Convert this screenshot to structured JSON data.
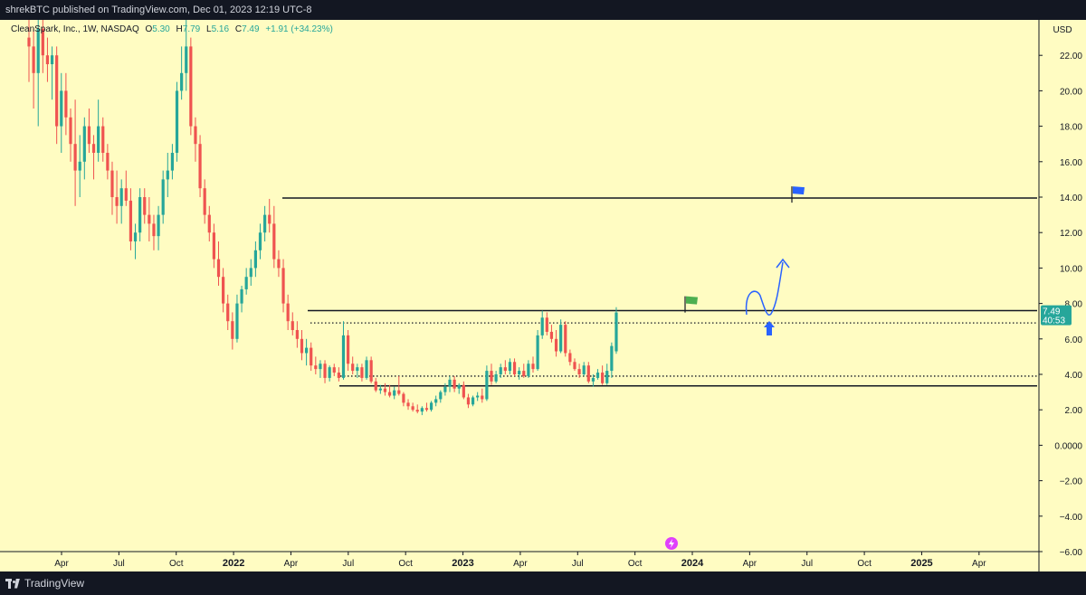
{
  "header": {
    "publisher_line": "shrekBTC published on TradingView.com, Dec 01, 2023 12:19 UTC-8"
  },
  "footer": {
    "brand": "TradingView"
  },
  "legend": {
    "symbol": "CleanSpark, Inc., 1W, NASDAQ",
    "o_label": "O",
    "o_value": "5.30",
    "h_label": "H",
    "h_value": "7.79",
    "l_label": "L",
    "l_value": "5.16",
    "c_label": "C",
    "c_value": "7.49",
    "change": "+1.91 (+34.23%)"
  },
  "price_axis": {
    "currency": "USD",
    "last_price": "7.49",
    "countdown": "40:53"
  },
  "colors": {
    "background": "#fffcc2",
    "up": "#26a69a",
    "down": "#ef5350",
    "line": "#131722",
    "drawing": "#2962ff",
    "flag_green": "#4caf50",
    "flag_blue": "#2962ff"
  },
  "chart_data": {
    "type": "candlestick",
    "interval": "1W",
    "yticks": [
      "22.00",
      "20.00",
      "18.00",
      "16.00",
      "14.00",
      "12.00",
      "10.00",
      "8.00",
      "6.00",
      "4.00",
      "2.00",
      "0.0000",
      "−2.00",
      "−4.00",
      "−6.00"
    ],
    "xticks": [
      "Apr",
      "Jul",
      "Oct",
      "2022",
      "Apr",
      "Jul",
      "Oct",
      "2023",
      "Apr",
      "Jul",
      "Oct",
      "2024",
      "Apr",
      "Jul",
      "Oct",
      "2025",
      "Apr"
    ],
    "ylim": [
      -6.0,
      24.0
    ],
    "horizontal_lines": [
      {
        "price": 13.95,
        "style": "solid"
      },
      {
        "price": 7.6,
        "style": "solid"
      },
      {
        "price": 6.9,
        "style": "dotted"
      },
      {
        "price": 3.9,
        "style": "dotted"
      },
      {
        "price": 3.35,
        "style": "solid"
      }
    ],
    "candles": [
      {
        "o": 23.0,
        "h": 24.5,
        "l": 20.5,
        "c": 22.5
      },
      {
        "o": 22.5,
        "h": 23.5,
        "l": 19.0,
        "c": 21.0
      },
      {
        "o": 21.0,
        "h": 24.0,
        "l": 18.0,
        "c": 23.5
      },
      {
        "o": 23.5,
        "h": 24.0,
        "l": 21.0,
        "c": 22.0
      },
      {
        "o": 22.0,
        "h": 23.0,
        "l": 20.5,
        "c": 21.5
      },
      {
        "o": 21.5,
        "h": 22.5,
        "l": 19.5,
        "c": 22.0
      },
      {
        "o": 22.0,
        "h": 22.5,
        "l": 17.0,
        "c": 18.0
      },
      {
        "o": 18.0,
        "h": 21.0,
        "l": 16.5,
        "c": 20.0
      },
      {
        "o": 20.0,
        "h": 21.0,
        "l": 17.5,
        "c": 18.5
      },
      {
        "o": 18.5,
        "h": 19.0,
        "l": 16.0,
        "c": 17.0
      },
      {
        "o": 17.0,
        "h": 19.5,
        "l": 13.5,
        "c": 15.5
      },
      {
        "o": 15.5,
        "h": 17.5,
        "l": 14.0,
        "c": 16.0
      },
      {
        "o": 16.0,
        "h": 18.5,
        "l": 15.0,
        "c": 18.0
      },
      {
        "o": 18.0,
        "h": 19.0,
        "l": 16.5,
        "c": 17.0
      },
      {
        "o": 17.0,
        "h": 17.5,
        "l": 15.0,
        "c": 16.5
      },
      {
        "o": 16.5,
        "h": 19.5,
        "l": 16.0,
        "c": 18.0
      },
      {
        "o": 18.0,
        "h": 18.5,
        "l": 16.0,
        "c": 16.5
      },
      {
        "o": 16.5,
        "h": 17.0,
        "l": 15.0,
        "c": 15.5
      },
      {
        "o": 15.5,
        "h": 16.0,
        "l": 13.0,
        "c": 14.0
      },
      {
        "o": 14.0,
        "h": 15.5,
        "l": 12.5,
        "c": 13.5
      },
      {
        "o": 13.5,
        "h": 15.0,
        "l": 12.5,
        "c": 14.5
      },
      {
        "o": 14.5,
        "h": 15.5,
        "l": 13.5,
        "c": 13.8
      },
      {
        "o": 13.8,
        "h": 14.5,
        "l": 11.0,
        "c": 11.5
      },
      {
        "o": 11.5,
        "h": 12.5,
        "l": 10.5,
        "c": 12.0
      },
      {
        "o": 12.0,
        "h": 14.5,
        "l": 11.5,
        "c": 14.0
      },
      {
        "o": 14.0,
        "h": 14.5,
        "l": 12.5,
        "c": 13.0
      },
      {
        "o": 13.0,
        "h": 14.0,
        "l": 11.5,
        "c": 12.5
      },
      {
        "o": 12.5,
        "h": 13.0,
        "l": 11.0,
        "c": 11.8
      },
      {
        "o": 11.8,
        "h": 13.5,
        "l": 11.0,
        "c": 13.0
      },
      {
        "o": 13.0,
        "h": 15.5,
        "l": 12.5,
        "c": 15.0
      },
      {
        "o": 15.0,
        "h": 16.5,
        "l": 14.0,
        "c": 15.5
      },
      {
        "o": 15.5,
        "h": 17.0,
        "l": 15.0,
        "c": 16.5
      },
      {
        "o": 16.5,
        "h": 20.5,
        "l": 16.0,
        "c": 20.0
      },
      {
        "o": 20.0,
        "h": 22.5,
        "l": 19.5,
        "c": 21.0
      },
      {
        "o": 21.0,
        "h": 24.0,
        "l": 20.0,
        "c": 22.5
      },
      {
        "o": 22.5,
        "h": 23.0,
        "l": 17.5,
        "c": 18.0
      },
      {
        "o": 18.0,
        "h": 18.5,
        "l": 16.0,
        "c": 17.0
      },
      {
        "o": 17.0,
        "h": 17.5,
        "l": 14.0,
        "c": 14.5
      },
      {
        "o": 14.5,
        "h": 15.0,
        "l": 12.5,
        "c": 13.0
      },
      {
        "o": 13.0,
        "h": 13.5,
        "l": 11.5,
        "c": 12.0
      },
      {
        "o": 12.0,
        "h": 12.5,
        "l": 10.0,
        "c": 10.5
      },
      {
        "o": 10.5,
        "h": 11.5,
        "l": 9.0,
        "c": 9.5
      },
      {
        "o": 9.5,
        "h": 10.0,
        "l": 7.5,
        "c": 8.0
      },
      {
        "o": 8.0,
        "h": 8.5,
        "l": 6.5,
        "c": 7.0
      },
      {
        "o": 7.0,
        "h": 7.5,
        "l": 5.4,
        "c": 6.0
      },
      {
        "o": 6.0,
        "h": 8.5,
        "l": 5.8,
        "c": 8.0
      },
      {
        "o": 8.0,
        "h": 9.0,
        "l": 7.5,
        "c": 8.8
      },
      {
        "o": 8.8,
        "h": 10.0,
        "l": 8.5,
        "c": 9.5
      },
      {
        "o": 9.5,
        "h": 10.5,
        "l": 9.0,
        "c": 10.0
      },
      {
        "o": 10.0,
        "h": 11.5,
        "l": 9.5,
        "c": 11.0
      },
      {
        "o": 11.0,
        "h": 12.5,
        "l": 10.5,
        "c": 12.0
      },
      {
        "o": 12.0,
        "h": 13.5,
        "l": 11.5,
        "c": 13.0
      },
      {
        "o": 13.0,
        "h": 13.9,
        "l": 12.0,
        "c": 12.5
      },
      {
        "o": 12.5,
        "h": 13.5,
        "l": 10.0,
        "c": 10.5
      },
      {
        "o": 10.5,
        "h": 11.0,
        "l": 9.5,
        "c": 10.0
      },
      {
        "o": 10.0,
        "h": 10.5,
        "l": 7.5,
        "c": 8.0
      },
      {
        "o": 8.0,
        "h": 8.5,
        "l": 6.5,
        "c": 7.0
      },
      {
        "o": 7.0,
        "h": 7.5,
        "l": 6.2,
        "c": 6.5
      },
      {
        "o": 6.5,
        "h": 7.0,
        "l": 5.5,
        "c": 6.0
      },
      {
        "o": 6.0,
        "h": 6.5,
        "l": 4.8,
        "c": 5.2
      },
      {
        "o": 5.2,
        "h": 6.0,
        "l": 4.5,
        "c": 5.5
      },
      {
        "o": 5.5,
        "h": 5.8,
        "l": 4.2,
        "c": 4.5
      },
      {
        "o": 4.5,
        "h": 5.0,
        "l": 4.0,
        "c": 4.3
      },
      {
        "o": 4.3,
        "h": 4.8,
        "l": 3.8,
        "c": 4.6
      },
      {
        "o": 4.6,
        "h": 4.8,
        "l": 3.5,
        "c": 3.8
      },
      {
        "o": 3.8,
        "h": 4.5,
        "l": 3.6,
        "c": 4.4
      },
      {
        "o": 4.4,
        "h": 4.6,
        "l": 3.9,
        "c": 4.1
      },
      {
        "o": 4.1,
        "h": 4.4,
        "l": 3.6,
        "c": 3.8
      },
      {
        "o": 3.8,
        "h": 7.0,
        "l": 3.7,
        "c": 6.2
      },
      {
        "o": 6.2,
        "h": 6.5,
        "l": 4.2,
        "c": 4.6
      },
      {
        "o": 4.6,
        "h": 5.0,
        "l": 4.0,
        "c": 4.2
      },
      {
        "o": 4.2,
        "h": 4.6,
        "l": 3.8,
        "c": 4.4
      },
      {
        "o": 4.4,
        "h": 4.6,
        "l": 3.6,
        "c": 3.8
      },
      {
        "o": 3.8,
        "h": 5.0,
        "l": 3.7,
        "c": 4.8
      },
      {
        "o": 4.8,
        "h": 5.0,
        "l": 3.5,
        "c": 3.6
      },
      {
        "o": 3.6,
        "h": 3.8,
        "l": 3.0,
        "c": 3.1
      },
      {
        "o": 3.1,
        "h": 3.4,
        "l": 2.9,
        "c": 3.2
      },
      {
        "o": 3.2,
        "h": 3.5,
        "l": 2.8,
        "c": 3.0
      },
      {
        "o": 3.0,
        "h": 3.4,
        "l": 2.7,
        "c": 2.8
      },
      {
        "o": 2.8,
        "h": 3.3,
        "l": 2.6,
        "c": 3.1
      },
      {
        "o": 3.1,
        "h": 3.9,
        "l": 2.8,
        "c": 2.9
      },
      {
        "o": 2.9,
        "h": 3.0,
        "l": 2.2,
        "c": 2.4
      },
      {
        "o": 2.4,
        "h": 2.6,
        "l": 2.0,
        "c": 2.2
      },
      {
        "o": 2.2,
        "h": 2.4,
        "l": 1.9,
        "c": 2.0
      },
      {
        "o": 2.0,
        "h": 2.3,
        "l": 1.8,
        "c": 1.9
      },
      {
        "o": 1.9,
        "h": 2.2,
        "l": 1.7,
        "c": 2.1
      },
      {
        "o": 2.1,
        "h": 2.4,
        "l": 1.9,
        "c": 2.0
      },
      {
        "o": 2.0,
        "h": 2.5,
        "l": 1.9,
        "c": 2.4
      },
      {
        "o": 2.4,
        "h": 2.8,
        "l": 2.2,
        "c": 2.6
      },
      {
        "o": 2.6,
        "h": 3.1,
        "l": 2.4,
        "c": 3.0
      },
      {
        "o": 3.0,
        "h": 3.5,
        "l": 2.8,
        "c": 3.3
      },
      {
        "o": 3.3,
        "h": 3.9,
        "l": 3.0,
        "c": 3.7
      },
      {
        "o": 3.7,
        "h": 3.9,
        "l": 3.0,
        "c": 3.2
      },
      {
        "o": 3.2,
        "h": 3.5,
        "l": 2.9,
        "c": 3.4
      },
      {
        "o": 3.4,
        "h": 3.6,
        "l": 2.6,
        "c": 2.7
      },
      {
        "o": 2.7,
        "h": 2.9,
        "l": 2.1,
        "c": 2.3
      },
      {
        "o": 2.3,
        "h": 2.8,
        "l": 2.2,
        "c": 2.7
      },
      {
        "o": 2.7,
        "h": 3.0,
        "l": 2.5,
        "c": 2.8
      },
      {
        "o": 2.8,
        "h": 3.2,
        "l": 2.4,
        "c": 2.6
      },
      {
        "o": 2.6,
        "h": 4.5,
        "l": 2.5,
        "c": 4.2
      },
      {
        "o": 4.2,
        "h": 4.6,
        "l": 3.4,
        "c": 3.6
      },
      {
        "o": 3.6,
        "h": 4.2,
        "l": 3.5,
        "c": 4.0
      },
      {
        "o": 4.0,
        "h": 4.6,
        "l": 3.8,
        "c": 4.4
      },
      {
        "o": 4.4,
        "h": 4.8,
        "l": 4.0,
        "c": 4.2
      },
      {
        "o": 4.2,
        "h": 4.9,
        "l": 4.0,
        "c": 4.7
      },
      {
        "o": 4.7,
        "h": 4.9,
        "l": 3.9,
        "c": 4.0
      },
      {
        "o": 4.0,
        "h": 4.4,
        "l": 3.7,
        "c": 4.2
      },
      {
        "o": 4.2,
        "h": 4.6,
        "l": 3.8,
        "c": 3.9
      },
      {
        "o": 3.9,
        "h": 4.8,
        "l": 3.8,
        "c": 4.6
      },
      {
        "o": 4.6,
        "h": 5.0,
        "l": 4.1,
        "c": 4.3
      },
      {
        "o": 4.3,
        "h": 6.5,
        "l": 4.2,
        "c": 6.2
      },
      {
        "o": 6.2,
        "h": 7.6,
        "l": 6.0,
        "c": 7.2
      },
      {
        "o": 7.2,
        "h": 7.5,
        "l": 6.2,
        "c": 6.4
      },
      {
        "o": 6.4,
        "h": 6.8,
        "l": 5.8,
        "c": 6.0
      },
      {
        "o": 6.0,
        "h": 6.5,
        "l": 5.0,
        "c": 5.3
      },
      {
        "o": 5.3,
        "h": 7.1,
        "l": 5.2,
        "c": 6.8
      },
      {
        "o": 6.8,
        "h": 7.0,
        "l": 5.0,
        "c": 5.2
      },
      {
        "o": 5.2,
        "h": 5.4,
        "l": 4.5,
        "c": 4.7
      },
      {
        "o": 4.7,
        "h": 4.9,
        "l": 4.2,
        "c": 4.3
      },
      {
        "o": 4.3,
        "h": 4.6,
        "l": 3.8,
        "c": 4.0
      },
      {
        "o": 4.0,
        "h": 4.7,
        "l": 3.9,
        "c": 4.5
      },
      {
        "o": 4.5,
        "h": 4.7,
        "l": 3.5,
        "c": 3.6
      },
      {
        "o": 3.6,
        "h": 4.0,
        "l": 3.3,
        "c": 3.8
      },
      {
        "o": 3.8,
        "h": 4.3,
        "l": 3.7,
        "c": 4.1
      },
      {
        "o": 4.1,
        "h": 4.5,
        "l": 3.4,
        "c": 3.5
      },
      {
        "o": 3.5,
        "h": 4.6,
        "l": 3.4,
        "c": 4.2
      },
      {
        "o": 4.2,
        "h": 5.8,
        "l": 3.8,
        "c": 5.6
      },
      {
        "o": 5.3,
        "h": 7.79,
        "l": 5.16,
        "c": 7.49
      }
    ],
    "annotations": [
      {
        "type": "flag",
        "color": "green",
        "time_index": 129,
        "price": 8.1
      },
      {
        "type": "flag",
        "color": "blue",
        "time_index": 149,
        "price": 14.3
      },
      {
        "type": "arrow-up",
        "color": "blue",
        "time_index": 144,
        "price": 6.6
      },
      {
        "type": "path-arrow",
        "color": "blue"
      }
    ]
  }
}
